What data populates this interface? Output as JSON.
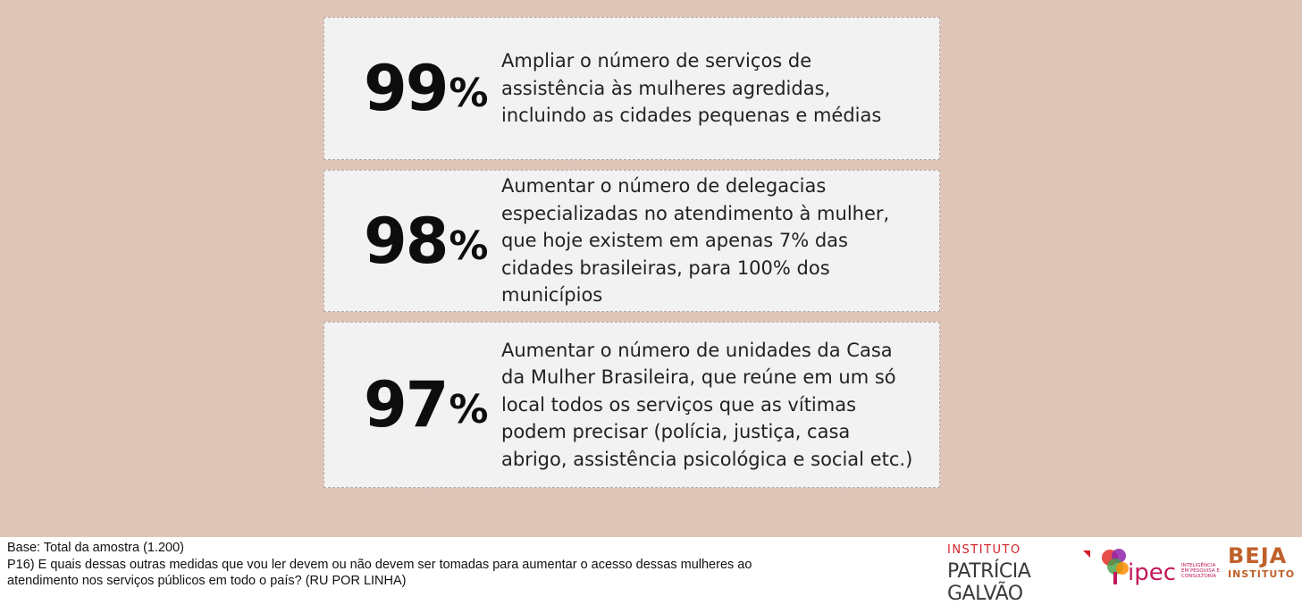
{
  "cards": [
    {
      "percent": "99",
      "percent_sign": "%",
      "text": "Ampliar o número de serviços de assistência às mulheres agredidas, incluindo as cidades pequenas e médias"
    },
    {
      "percent": "98",
      "percent_sign": "%",
      "text": "Aumentar o número de delegacias especializadas no atendimento à mulher, que hoje existem em apenas 7% das cidades brasileiras, para 100% dos municípios"
    },
    {
      "percent": "97",
      "percent_sign": "%",
      "text": "Aumentar o número de unidades da Casa da Mulher Brasileira, que reúne em um só local todos os serviços que as vítimas podem precisar (polícia, justiça, casa abrigo, assistência psicológica e social etc.)"
    }
  ],
  "footer": {
    "base": "Base: Total da amostra (1.200)",
    "question": "P16) E quais dessas outras medidas que vou ler devem ou não devem ser tomadas para aumentar o acesso dessas mulheres ao atendimento nos serviços públicos em todo o país? (RU POR LINHA)"
  },
  "logos": {
    "patricia_top": "INSTITUTO",
    "patricia_name": "PATRÍCIA GALVÃO",
    "ipec_name": "ipec",
    "ipec_tagline": "INTELIGÊNCIA EM PESQUISA E CONSULTORIA",
    "beja_name": "BEJA",
    "beja_sub": "INSTITUTO"
  },
  "colors": {
    "background": "#dfc4b8",
    "card": "#f2f2f2",
    "patricia_red": "#d21f26",
    "ipec_magenta": "#c2185b",
    "beja_orange": "#c0602a"
  }
}
